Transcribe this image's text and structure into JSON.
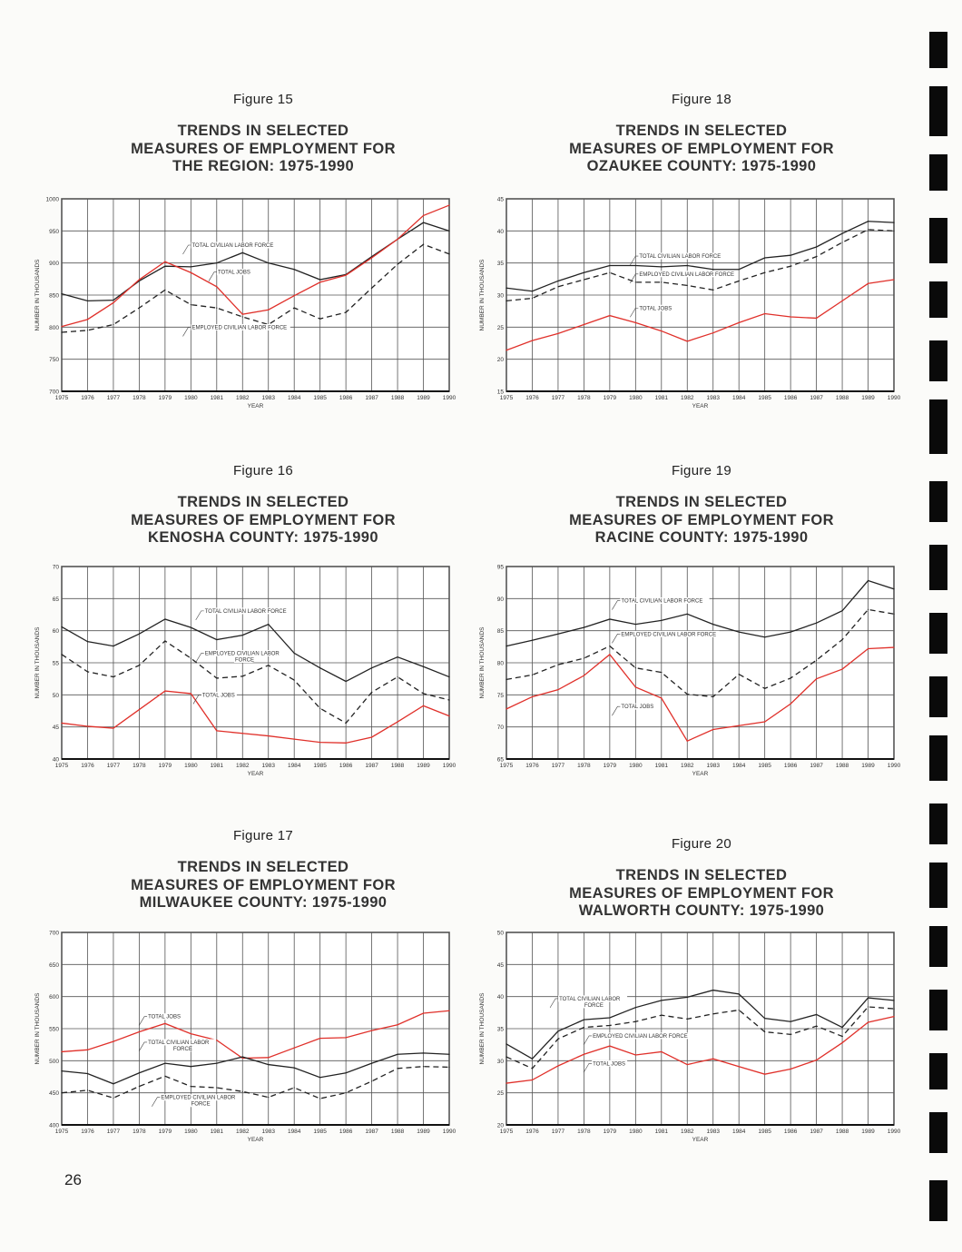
{
  "page_number": "26",
  "colors": {
    "total_jobs": "#e0302a",
    "labor_force": "#222222",
    "grid": "#444444"
  },
  "chart_data": [
    {
      "type": "line",
      "figure_label": "Figure 15",
      "title": [
        "TRENDS IN SELECTED",
        "MEASURES OF EMPLOYMENT FOR",
        "THE REGION: 1975-1990"
      ],
      "xlabel": "YEAR",
      "ylabel": "NUMBER IN THOUSANDS",
      "x": [
        1975,
        1976,
        1977,
        1978,
        1979,
        1980,
        1981,
        1982,
        1983,
        1984,
        1985,
        1986,
        1987,
        1988,
        1989,
        1990
      ],
      "ylim": [
        700,
        1000
      ],
      "yticks": [
        700,
        750,
        800,
        850,
        900,
        950,
        1000
      ],
      "grid": true,
      "series": [
        {
          "name": "TOTAL CIVILIAN LABOR FORCE",
          "label": [
            "TOTAL CIVILIAN LABOR FORCE"
          ],
          "style": "solid",
          "color": "#222222",
          "values": [
            852,
            841,
            842,
            872,
            895,
            894,
            900,
            916,
            900,
            890,
            874,
            882,
            910,
            937,
            963,
            950
          ]
        },
        {
          "name": "TOTAL JOBS",
          "label": [
            "TOTAL JOBS"
          ],
          "style": "solid",
          "color": "#e0302a",
          "values": [
            801,
            812,
            838,
            874,
            902,
            885,
            863,
            820,
            827,
            849,
            870,
            881,
            908,
            937,
            974,
            990
          ]
        },
        {
          "name": "EMPLOYED CIVILIAN LABOR FORCE",
          "label": [
            "EMPLOYED CIVILIAN LABOR FORCE"
          ],
          "style": "dashed",
          "color": "#222222",
          "values": [
            792,
            795,
            804,
            830,
            858,
            835,
            830,
            816,
            804,
            830,
            813,
            823,
            861,
            898,
            929,
            914
          ]
        }
      ]
    },
    {
      "type": "line",
      "figure_label": "Figure 16",
      "title": [
        "TRENDS IN SELECTED",
        "MEASURES OF EMPLOYMENT FOR",
        "KENOSHA COUNTY: 1975-1990"
      ],
      "xlabel": "YEAR",
      "ylabel": "NUMBER IN THOUSANDS",
      "x": [
        1975,
        1976,
        1977,
        1978,
        1979,
        1980,
        1981,
        1982,
        1983,
        1984,
        1985,
        1986,
        1987,
        1988,
        1989,
        1990
      ],
      "ylim": [
        40,
        70
      ],
      "yticks": [
        40,
        45,
        50,
        55,
        60,
        65,
        70
      ],
      "grid": true,
      "series": [
        {
          "name": "TOTAL CIVILIAN LABOR FORCE",
          "label": [
            "TOTAL CIVILIAN LABOR FORCE"
          ],
          "style": "solid",
          "color": "#222222",
          "values": [
            60.6,
            58.3,
            57.6,
            59.5,
            61.8,
            60.5,
            58.6,
            59.3,
            61.0,
            56.5,
            54.2,
            52.1,
            54.2,
            55.9,
            54.4,
            52.8
          ]
        },
        {
          "name": "EMPLOYED CIVILIAN LABOR FORCE",
          "label": [
            "EMPLOYED CIVILIAN LABOR",
            "FORCE"
          ],
          "style": "dashed",
          "color": "#222222",
          "values": [
            56.3,
            53.6,
            52.8,
            54.6,
            58.4,
            55.7,
            52.6,
            52.9,
            54.6,
            52.3,
            47.9,
            45.6,
            50.4,
            52.8,
            50.2,
            49.2
          ]
        },
        {
          "name": "TOTAL JOBS",
          "label": [
            "TOTAL JOBS"
          ],
          "style": "solid",
          "color": "#e0302a",
          "values": [
            45.6,
            45.1,
            44.8,
            47.7,
            50.6,
            50.2,
            44.4,
            44.0,
            43.6,
            43.1,
            42.6,
            42.5,
            43.4,
            45.8,
            48.3,
            46.7
          ]
        }
      ]
    },
    {
      "type": "line",
      "figure_label": "Figure 17",
      "title": [
        "TRENDS IN SELECTED",
        "MEASURES OF EMPLOYMENT FOR",
        "MILWAUKEE COUNTY: 1975-1990"
      ],
      "xlabel": "YEAR",
      "ylabel": "NUMBER IN THOUSANDS",
      "x": [
        1975,
        1976,
        1977,
        1978,
        1979,
        1980,
        1981,
        1982,
        1983,
        1984,
        1985,
        1986,
        1987,
        1988,
        1989,
        1990
      ],
      "ylim": [
        400,
        700
      ],
      "yticks": [
        400,
        450,
        500,
        550,
        600,
        650,
        700
      ],
      "grid": true,
      "series": [
        {
          "name": "TOTAL JOBS",
          "label": [
            "TOTAL JOBS"
          ],
          "style": "solid",
          "color": "#e0302a",
          "values": [
            514,
            517,
            530,
            545,
            558,
            542,
            532,
            504,
            505,
            520,
            535,
            536,
            547,
            556,
            574,
            578
          ]
        },
        {
          "name": "TOTAL CIVILIAN LABOR FORCE",
          "label": [
            "TOTAL CIVILIAN LABOR",
            "FORCE"
          ],
          "style": "solid",
          "color": "#222222",
          "values": [
            484,
            480,
            464,
            481,
            496,
            491,
            496,
            506,
            494,
            489,
            474,
            481,
            496,
            510,
            512,
            510
          ]
        },
        {
          "name": "EMPLOYED CIVILIAN LABOR FORCE",
          "label": [
            "EMPLOYED CIVILIAN LABOR",
            "FORCE"
          ],
          "style": "dashed",
          "color": "#222222",
          "values": [
            450,
            454,
            442,
            460,
            476,
            460,
            458,
            452,
            443,
            458,
            441,
            450,
            468,
            488,
            491,
            490
          ]
        }
      ]
    },
    {
      "type": "line",
      "figure_label": "Figure 18",
      "title": [
        "TRENDS IN SELECTED",
        "MEASURES OF EMPLOYMENT FOR",
        "OZAUKEE COUNTY: 1975-1990"
      ],
      "xlabel": "YEAR",
      "ylabel": "NUMBER IN THOUSANDS",
      "x": [
        1975,
        1976,
        1977,
        1978,
        1979,
        1980,
        1981,
        1982,
        1983,
        1984,
        1985,
        1986,
        1987,
        1988,
        1989,
        1990
      ],
      "ylim": [
        15,
        45
      ],
      "yticks": [
        15,
        20,
        25,
        30,
        35,
        40,
        45
      ],
      "grid": true,
      "series": [
        {
          "name": "TOTAL CIVILIAN LABOR FORCE",
          "label": [
            "TOTAL CIVILIAN LABOR FORCE"
          ],
          "style": "solid",
          "color": "#222222",
          "values": [
            31.1,
            30.6,
            32.2,
            33.5,
            34.6,
            34.6,
            34.4,
            34.6,
            34.0,
            34.0,
            35.8,
            36.2,
            37.5,
            39.6,
            41.5,
            41.3
          ]
        },
        {
          "name": "EMPLOYED CIVILIAN LABOR FORCE",
          "label": [
            "EMPLOYED CIVILIAN LABOR FORCE"
          ],
          "style": "dashed",
          "color": "#222222",
          "values": [
            29.1,
            29.5,
            31.3,
            32.4,
            33.5,
            32.0,
            32.0,
            31.5,
            30.8,
            32.2,
            33.5,
            34.5,
            36.0,
            38.2,
            40.2,
            40.0
          ]
        },
        {
          "name": "TOTAL JOBS",
          "label": [
            "TOTAL JOBS"
          ],
          "style": "solid",
          "color": "#e0302a",
          "values": [
            21.4,
            22.9,
            24.0,
            25.4,
            26.8,
            25.7,
            24.4,
            22.8,
            24.1,
            25.7,
            27.1,
            26.6,
            26.4,
            29.1,
            31.8,
            32.4
          ]
        }
      ]
    },
    {
      "type": "line",
      "figure_label": "Figure 19",
      "title": [
        "TRENDS IN SELECTED",
        "MEASURES OF EMPLOYMENT FOR",
        "RACINE COUNTY: 1975-1990"
      ],
      "xlabel": "YEAR",
      "ylabel": "NUMBER IN THOUSANDS",
      "x": [
        1975,
        1976,
        1977,
        1978,
        1979,
        1980,
        1981,
        1982,
        1983,
        1984,
        1985,
        1986,
        1987,
        1988,
        1989,
        1990
      ],
      "ylim": [
        65,
        95
      ],
      "yticks": [
        65,
        70,
        75,
        80,
        85,
        90,
        95
      ],
      "grid": true,
      "series": [
        {
          "name": "TOTAL CIVILIAN LABOR FORCE",
          "label": [
            "TOTAL CIVILIAN LABOR FORCE"
          ],
          "style": "solid",
          "color": "#222222",
          "values": [
            82.6,
            83.5,
            84.5,
            85.5,
            86.8,
            86.0,
            86.6,
            87.6,
            86.0,
            84.8,
            84.0,
            84.8,
            86.2,
            88.1,
            92.8,
            91.5
          ]
        },
        {
          "name": "EMPLOYED CIVILIAN LABOR FORCE",
          "label": [
            "EMPLOYED CIVILIAN LABOR FORCE"
          ],
          "style": "dashed",
          "color": "#222222",
          "values": [
            77.4,
            78.1,
            79.7,
            80.7,
            82.6,
            79.2,
            78.5,
            75.1,
            74.7,
            78.2,
            76.0,
            77.6,
            80.4,
            83.6,
            88.3,
            87.6
          ]
        },
        {
          "name": "TOTAL JOBS",
          "label": [
            "TOTAL JOBS"
          ],
          "style": "solid",
          "color": "#e0302a",
          "values": [
            72.8,
            74.7,
            75.8,
            78.0,
            81.3,
            76.2,
            74.5,
            67.8,
            69.6,
            70.2,
            70.8,
            73.6,
            77.5,
            79.0,
            82.2,
            82.4
          ]
        }
      ]
    },
    {
      "type": "line",
      "figure_label": "Figure 20",
      "title": [
        "TRENDS IN SELECTED",
        "MEASURES OF EMPLOYMENT FOR",
        "WALWORTH COUNTY: 1975-1990"
      ],
      "xlabel": "YEAR",
      "ylabel": "NUMBER IN THOUSANDS",
      "x": [
        1975,
        1976,
        1977,
        1978,
        1979,
        1980,
        1981,
        1982,
        1983,
        1984,
        1985,
        1986,
        1987,
        1988,
        1989,
        1990
      ],
      "ylim": [
        20,
        50
      ],
      "yticks": [
        20,
        25,
        30,
        35,
        40,
        45,
        50
      ],
      "grid": true,
      "series": [
        {
          "name": "TOTAL CIVILIAN LABOR FORCE",
          "label": [
            "TOTAL CIVILIAN LABOR",
            "FORCE"
          ],
          "style": "solid",
          "color": "#222222",
          "values": [
            32.6,
            30.3,
            34.6,
            36.4,
            36.7,
            38.3,
            39.4,
            39.9,
            41.0,
            40.4,
            36.6,
            36.1,
            37.2,
            35.2,
            39.8,
            39.4
          ]
        },
        {
          "name": "EMPLOYED CIVILIAN LABOR FORCE",
          "label": [
            "EMPLOYED CIVILIAN LABOR FORCE"
          ],
          "style": "dashed",
          "color": "#222222",
          "values": [
            30.6,
            28.8,
            33.4,
            35.2,
            35.5,
            36.1,
            37.1,
            36.5,
            37.3,
            37.9,
            34.5,
            34.1,
            35.4,
            33.8,
            38.4,
            38.1
          ]
        },
        {
          "name": "TOTAL JOBS",
          "label": [
            "TOTAL JOBS"
          ],
          "style": "solid",
          "color": "#e0302a",
          "values": [
            26.5,
            27.0,
            29.2,
            31.0,
            32.3,
            30.9,
            31.4,
            29.4,
            30.3,
            29.1,
            27.9,
            28.7,
            30.1,
            32.8,
            36.0,
            36.9
          ]
        }
      ]
    }
  ]
}
